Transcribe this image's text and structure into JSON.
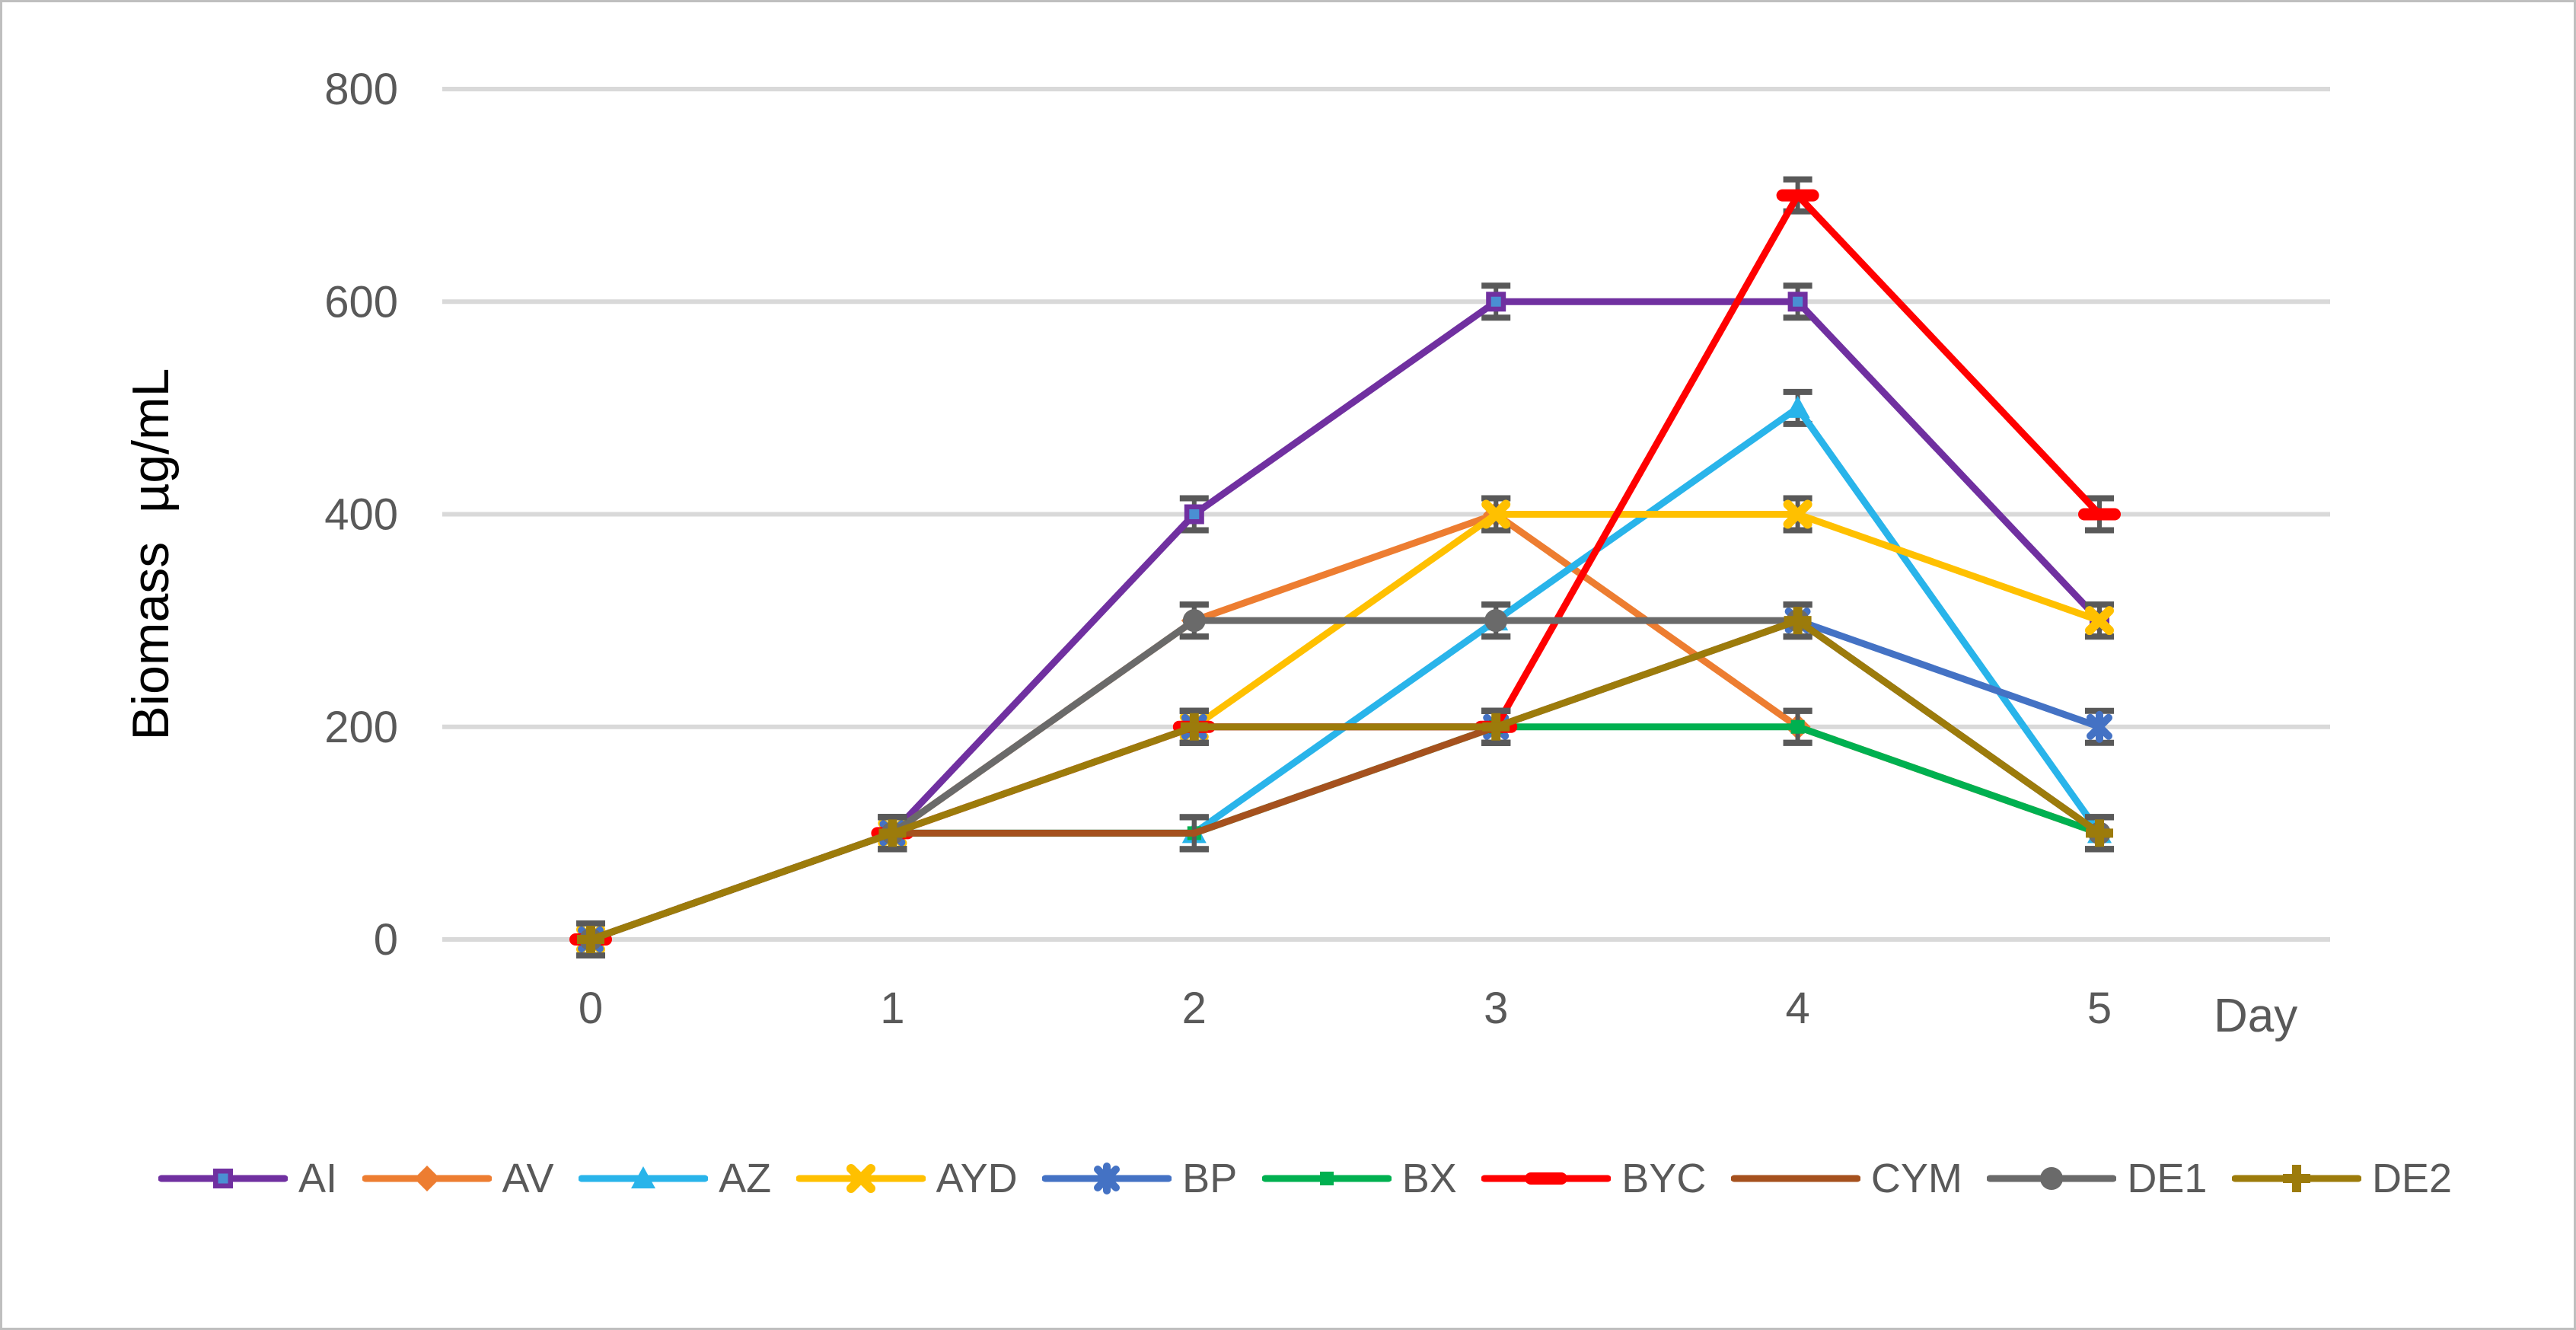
{
  "figure": {
    "ylabel": "Biomass  µg/mL",
    "xlabel": "Day"
  },
  "chart_data": {
    "type": "line",
    "title": "",
    "xlabel": "Day",
    "ylabel": "Biomass  µg/mL",
    "categories": [
      0,
      1,
      2,
      3,
      4,
      5
    ],
    "ylim": [
      0,
      800
    ],
    "yticks": [
      0,
      200,
      400,
      600,
      800
    ],
    "grid": "horizontal",
    "legend_position": "bottom",
    "error_bar_units": 15,
    "series": [
      {
        "name": "AI",
        "color": "#7030A0",
        "marker": "square-in-square",
        "values": [
          0,
          100,
          400,
          600,
          600,
          300
        ]
      },
      {
        "name": "AV",
        "color": "#ED7D31",
        "marker": "diamond",
        "values": [
          0,
          100,
          300,
          400,
          200,
          100
        ]
      },
      {
        "name": "AZ",
        "color": "#29B4EA",
        "marker": "triangle",
        "values": [
          0,
          100,
          100,
          300,
          500,
          100
        ]
      },
      {
        "name": "AYD",
        "color": "#FFC000",
        "marker": "x",
        "values": [
          0,
          100,
          200,
          400,
          400,
          300
        ]
      },
      {
        "name": "BP",
        "color": "#4472C4",
        "marker": "asterisk",
        "values": [
          0,
          100,
          200,
          200,
          300,
          200
        ]
      },
      {
        "name": "BX",
        "color": "#00B050",
        "marker": "small-square",
        "values": [
          0,
          100,
          100,
          200,
          200,
          100
        ]
      },
      {
        "name": "BYC",
        "color": "#FF0000",
        "marker": "hbar",
        "values": [
          0,
          100,
          200,
          200,
          700,
          400
        ]
      },
      {
        "name": "CYM",
        "color": "#A5511E",
        "marker": "none",
        "values": [
          0,
          100,
          100,
          200,
          300,
          100
        ]
      },
      {
        "name": "DE1",
        "color": "#6A6A6A",
        "marker": "circle",
        "values": [
          0,
          100,
          300,
          300,
          300,
          100
        ]
      },
      {
        "name": "DE2",
        "color": "#9C7B0B",
        "marker": "plus",
        "values": [
          0,
          100,
          200,
          200,
          300,
          100
        ]
      }
    ],
    "colors": {
      "grid": "#D9D9D9",
      "tick_text": "#595959",
      "axis_title_text": "#000000",
      "x_title_text": "#595959",
      "error_bar": "#595959",
      "figure_border": "#BFBFBF",
      "marker_inner": "#4A8FD3"
    }
  }
}
